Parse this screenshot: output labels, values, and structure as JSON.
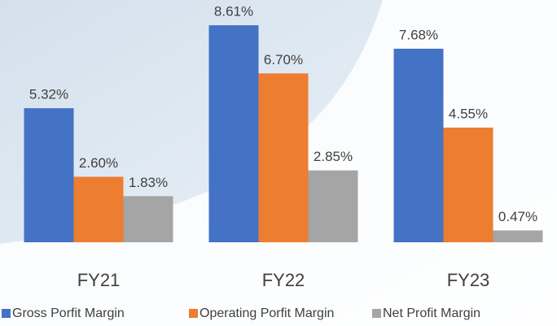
{
  "chart_data": {
    "type": "bar",
    "categories": [
      "FY21",
      "FY22",
      "FY23"
    ],
    "series": [
      {
        "name": "Gross Porfit Margin",
        "color": "#4472c4",
        "values": [
          5.32,
          8.61,
          7.68
        ],
        "value_labels": [
          "5.32%",
          "8.61%",
          "7.68%"
        ]
      },
      {
        "name": "Operating Porfit Margin",
        "color": "#ed7d31",
        "values": [
          2.6,
          6.7,
          4.55
        ],
        "value_labels": [
          "2.60%",
          "6.70%",
          "4.55%"
        ]
      },
      {
        "name": "Net Profit Margin",
        "color": "#a5a5a5",
        "values": [
          1.83,
          2.85,
          0.47
        ],
        "value_labels": [
          "1.83%",
          "2.85%",
          "0.47%"
        ]
      }
    ],
    "ylim": [
      0,
      10
    ],
    "legend": "bottom"
  }
}
